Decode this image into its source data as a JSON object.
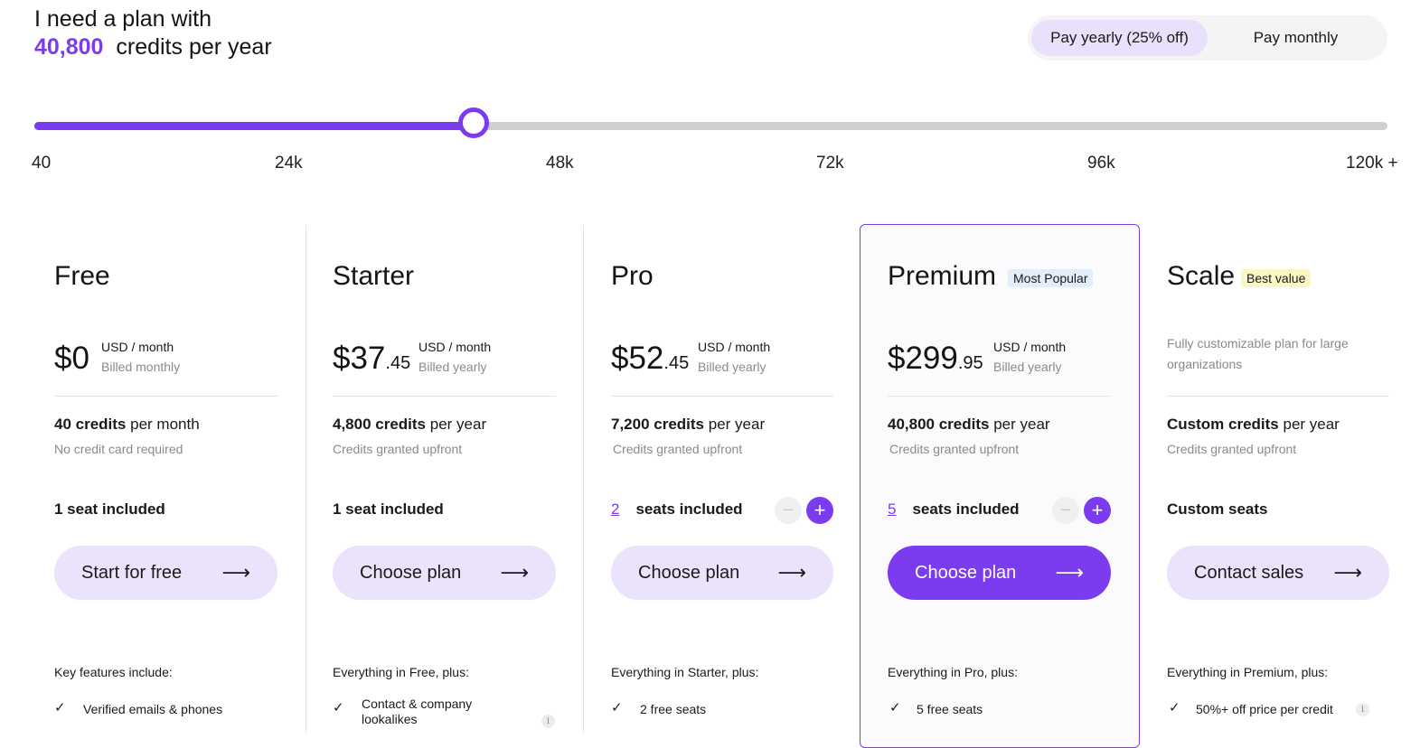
{
  "heading": {
    "line1": "I need a plan with",
    "credits_value": "40,800",
    "credits_suffix": "credits per year"
  },
  "billing_toggle": {
    "yearly_label": "Pay yearly (25% off)",
    "monthly_label": "Pay monthly",
    "selected": "yearly"
  },
  "slider": {
    "value": 40800,
    "min": 40,
    "max": 120000,
    "ticks": [
      "40",
      "24k",
      "48k",
      "72k",
      "96k",
      "120k +"
    ]
  },
  "plans": [
    {
      "name": "Free",
      "price_whole": "$0",
      "price_cents": "",
      "price_unit": "USD / month",
      "billed": "Billed monthly",
      "credits_strong": "40 credits",
      "credits_period": "per month",
      "credits_sub": "No credit card required",
      "seats_text": "1 seat included",
      "cta": "Start for free",
      "features_title": "Key features include:",
      "feature_1": "Verified emails & phones"
    },
    {
      "name": "Starter",
      "price_whole": "$37",
      "price_cents": ".45",
      "price_unit": "USD / month",
      "billed": "Billed yearly",
      "credits_strong": "4,800 credits",
      "credits_period": "per year",
      "credits_sub": "Credits granted upfront",
      "seats_text": "1 seat included",
      "cta": "Choose plan",
      "features_title": "Everything in Free, plus:",
      "feature_1": "Contact & company lookalikes"
    },
    {
      "name": "Pro",
      "price_whole": "$52",
      "price_cents": ".45",
      "price_unit": "USD / month",
      "billed": "Billed yearly",
      "credits_strong": "7,200 credits",
      "credits_period": "per year",
      "credits_sub": "Credits granted upfront",
      "seats_count": "2",
      "seats_text": "seats included",
      "cta": "Choose plan",
      "features_title": "Everything in Starter, plus:",
      "feature_1": "2 free seats"
    },
    {
      "name": "Premium",
      "badge": "Most Popular",
      "price_whole": "$299",
      "price_cents": ".95",
      "price_unit": "USD / month",
      "billed": "Billed yearly",
      "credits_strong": "40,800 credits",
      "credits_period": "per year",
      "credits_sub": "Credits granted upfront",
      "seats_count": "5",
      "seats_text": "seats included",
      "cta": "Choose plan",
      "features_title": "Everything in Pro, plus:",
      "feature_1": "5 free seats"
    },
    {
      "name": "Scale",
      "badge": "Best value",
      "description": "Fully customizable plan for large organizations",
      "credits_strong": "Custom credits",
      "credits_period": "per year",
      "credits_sub": "Credits granted upfront",
      "seats_text": "Custom seats",
      "cta": "Contact sales",
      "features_title": "Everything in Premium, plus:",
      "feature_1": "50%+ off price per credit"
    }
  ],
  "icons": {
    "arrow": "arrow-right-icon",
    "check": "check-icon",
    "info": "info-icon",
    "minus": "minus-icon",
    "plus": "plus-icon"
  },
  "colors": {
    "accent": "#7b3cf0",
    "accent_light": "#ebe2fb",
    "badge_blue": "#e3eefc",
    "badge_yellow": "#fbf6c2",
    "muted_text": "#8a8a8a"
  }
}
